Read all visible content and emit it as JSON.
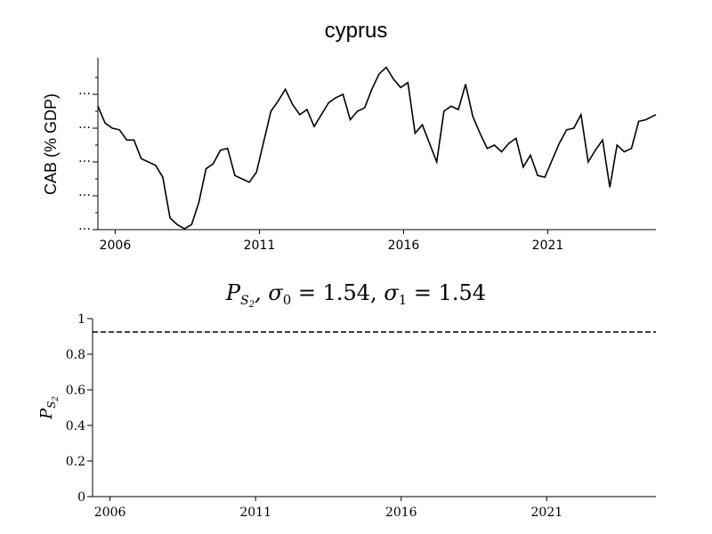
{
  "chart_data": [
    {
      "type": "line",
      "title": "cyprus",
      "ylabel": "CAB (% GDP)",
      "xlabel": "",
      "xlim": [
        2005.4,
        2024.75
      ],
      "ylim": [
        0,
        10
      ],
      "x_tick_values": [
        2006,
        2011,
        2016,
        2021
      ],
      "x_tick_labels": [
        "2006",
        "2011",
        "2016",
        "2021"
      ],
      "y_tick_values": [
        0,
        2,
        4,
        6,
        8
      ],
      "y_tick_labels": [
        "…",
        "…",
        "…",
        "…",
        "…"
      ],
      "series": [
        {
          "x": [
            2005.4,
            2005.65,
            2005.9,
            2006.15,
            2006.4,
            2006.65,
            2006.9,
            2007.15,
            2007.4,
            2007.65,
            2007.9,
            2008.15,
            2008.4,
            2008.65,
            2008.9,
            2009.15,
            2009.4,
            2009.65,
            2009.9,
            2010.15,
            2010.4,
            2010.65,
            2010.9,
            2011.15,
            2011.4,
            2011.65,
            2011.9,
            2012.15,
            2012.4,
            2012.65,
            2012.9,
            2013.15,
            2013.4,
            2013.65,
            2013.9,
            2014.15,
            2014.4,
            2014.65,
            2014.9,
            2015.15,
            2015.4,
            2015.65,
            2015.9,
            2016.15,
            2016.4,
            2016.65,
            2016.9,
            2017.15,
            2017.4,
            2017.65,
            2017.9,
            2018.15,
            2018.4,
            2018.65,
            2018.9,
            2019.15,
            2019.4,
            2019.65,
            2019.9,
            2020.15,
            2020.4,
            2020.65,
            2020.9,
            2021.15,
            2021.4,
            2021.65,
            2021.9,
            2022.15,
            2022.4,
            2022.65,
            2022.9,
            2023.15,
            2023.4,
            2023.65,
            2023.9,
            2024.15,
            2024.4,
            2024.75
          ],
          "y": [
            7.3,
            6.3,
            6.0,
            5.9,
            5.3,
            5.3,
            4.2,
            4.0,
            3.8,
            3.1,
            0.7,
            0.3,
            0.05,
            0.3,
            1.6,
            3.6,
            3.9,
            4.7,
            4.8,
            3.2,
            3.0,
            2.8,
            3.4,
            5.2,
            7.0,
            7.6,
            8.3,
            7.4,
            6.8,
            7.1,
            6.1,
            6.8,
            7.5,
            7.8,
            8.0,
            6.5,
            7.0,
            7.2,
            8.3,
            9.2,
            9.6,
            8.9,
            8.4,
            8.7,
            5.7,
            6.2,
            5.1,
            4.0,
            7.0,
            7.3,
            7.1,
            8.6,
            6.7,
            5.7,
            4.8,
            5.0,
            4.6,
            5.1,
            5.4,
            3.7,
            4.4,
            3.2,
            3.1,
            4.1,
            5.1,
            5.9,
            6.0,
            6.8,
            4.0,
            4.7,
            5.3,
            2.5,
            5.0,
            4.6,
            4.8,
            6.4,
            6.5,
            6.8
          ]
        }
      ]
    },
    {
      "type": "line",
      "title": "P_{S_2}, σ_0 = 1.54, σ_1 = 1.54",
      "title_parts": {
        "sym": "P",
        "sub": "S",
        "subsub": "2",
        "sep1": ", ",
        "sigma": "σ",
        "sigma0_sub": "0",
        "eq0": " = 1.54, ",
        "sigma1_sub": "1",
        "eq1": " = 1.54"
      },
      "ylabel": "P_{S_2}",
      "ylabel_parts": {
        "sym": "P",
        "sub": "S",
        "subsub": "2"
      },
      "xlabel": "",
      "xlim": [
        2005.4,
        2024.75
      ],
      "ylim": [
        0,
        1
      ],
      "x_tick_values": [
        2006,
        2011,
        2016,
        2021
      ],
      "x_tick_labels": [
        "2006",
        "2011",
        "2016",
        "2021"
      ],
      "y_tick_values": [
        0,
        0.2,
        0.4,
        0.6,
        0.8,
        1
      ],
      "y_tick_labels": [
        "0",
        "0.2",
        "0.4",
        "0.6",
        "0.8",
        "1"
      ],
      "series": [
        {
          "style": "dashed",
          "x": [
            2005.4,
            2024.75
          ],
          "y": [
            0.925,
            0.925
          ]
        }
      ]
    }
  ]
}
